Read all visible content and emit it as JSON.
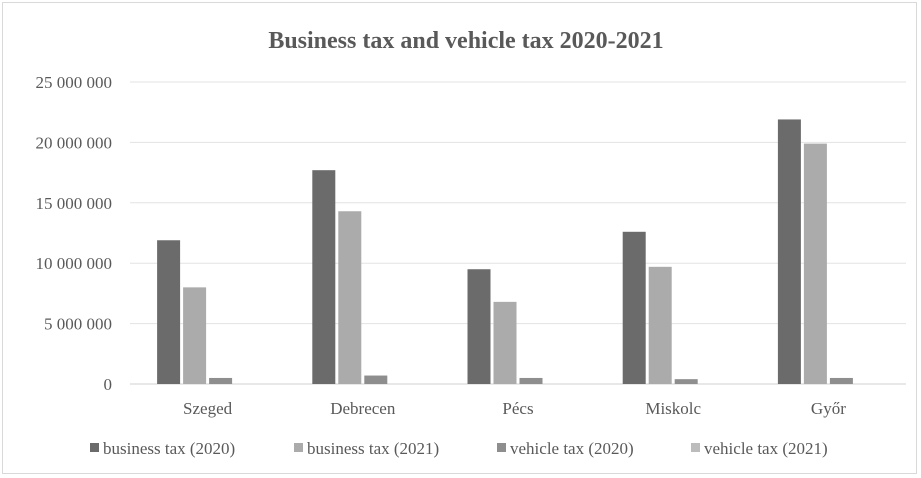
{
  "chart_data": {
    "type": "bar",
    "title": "Business tax and vehicle tax 2020-2021",
    "xlabel": "",
    "ylabel": "",
    "categories": [
      "Szeged",
      "Debrecen",
      "Pécs",
      "Miskolc",
      "Győr"
    ],
    "series": [
      {
        "name": "business tax (2020)",
        "color": "#6b6b6b",
        "values": [
          11900000,
          17700000,
          9500000,
          12600000,
          21900000
        ]
      },
      {
        "name": "business tax (2021)",
        "color": "#ababab",
        "values": [
          8000000,
          14300000,
          6800000,
          9700000,
          19900000
        ]
      },
      {
        "name": "vehicle tax (2020)",
        "color": "#8e8e8e",
        "values": [
          500000,
          700000,
          500000,
          400000,
          500000
        ]
      },
      {
        "name": "vehicle tax (2021)",
        "color": "#bcbcbc",
        "values": [
          0,
          0,
          0,
          0,
          0
        ]
      }
    ],
    "ylim": [
      0,
      25000000
    ],
    "yticks": [
      0,
      5000000,
      10000000,
      15000000,
      20000000,
      25000000
    ],
    "ytick_labels": [
      "0",
      "5 000 000",
      "10 000 000",
      "15 000 000",
      "20 000 000",
      "25 000 000"
    ],
    "grid": true,
    "legend_position": "bottom"
  }
}
